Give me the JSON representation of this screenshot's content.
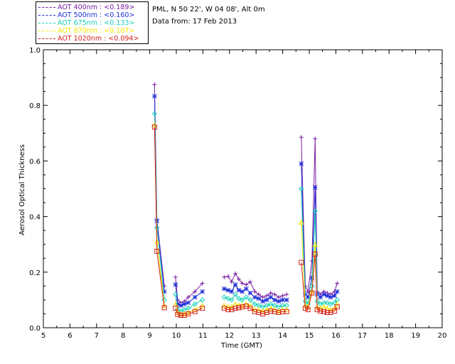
{
  "legend": {
    "items": [
      {
        "label": "AOT  400nm : <0.189>",
        "color": "#7b1fa2"
      },
      {
        "label": "AOT  500nm : <0.160>",
        "color": "#1f2fd6"
      },
      {
        "label": "AOT  675nm : <0.133>",
        "color": "#19d1b8"
      },
      {
        "label": "AOT  870nm : <0.107>",
        "color": "#f2e600"
      },
      {
        "label": "AOT 1020nm : <0.094>",
        "color": "#d42020"
      }
    ]
  },
  "info": {
    "location": "PML, N 50 22', W 04 08', Alt 0m",
    "date": "Data from: 17 Feb 2013"
  },
  "chart_data": {
    "type": "scatter",
    "xlabel": "Time (GMT)",
    "ylabel": "Aerosol Optical Thickness",
    "xlim": [
      5,
      20
    ],
    "ylim": [
      0.0,
      1.0
    ],
    "xticks": [
      "5",
      "6",
      "7",
      "8",
      "9",
      "10",
      "11",
      "12",
      "13",
      "14",
      "15",
      "16",
      "17",
      "18",
      "19",
      "20"
    ],
    "yticks": [
      "0.0",
      "0.2",
      "0.4",
      "0.6",
      "0.8",
      "1.0"
    ],
    "grid": false,
    "legend_position": "top-left, outside plot",
    "x": [
      9.18,
      9.27,
      9.55,
      9.97,
      10.05,
      10.17,
      10.3,
      10.45,
      10.7,
      10.98,
      11.8,
      11.95,
      12.08,
      12.22,
      12.35,
      12.48,
      12.63,
      12.78,
      12.95,
      13.1,
      13.25,
      13.4,
      13.55,
      13.7,
      13.85,
      14.0,
      14.15,
      14.7,
      14.85,
      14.95,
      15.1,
      15.22,
      15.3,
      15.42,
      15.55,
      15.68,
      15.8,
      15.95,
      16.05
    ],
    "series": [
      {
        "name": "AOT  400nm : <0.189>",
        "marker": "plus",
        "values": [
          0.875,
          0.39,
          0.15,
          0.182,
          0.1,
          0.09,
          0.095,
          0.11,
          0.13,
          0.16,
          0.182,
          0.185,
          0.165,
          0.195,
          0.175,
          0.16,
          0.155,
          0.165,
          0.13,
          0.12,
          0.11,
          0.115,
          0.125,
          0.12,
          0.11,
          0.115,
          0.12,
          0.685,
          0.15,
          0.13,
          0.24,
          0.68,
          0.13,
          0.12,
          0.13,
          0.125,
          0.12,
          0.13,
          0.16
        ]
      },
      {
        "name": "AOT  500nm : <0.160>",
        "marker": "asterisk",
        "values": [
          0.833,
          0.385,
          0.13,
          0.155,
          0.085,
          0.08,
          0.085,
          0.09,
          0.11,
          0.13,
          0.14,
          0.135,
          0.13,
          0.155,
          0.135,
          0.13,
          0.14,
          0.125,
          0.11,
          0.105,
          0.095,
          0.1,
          0.11,
          0.1,
          0.095,
          0.1,
          0.1,
          0.59,
          0.12,
          0.11,
          0.18,
          0.505,
          0.12,
          0.11,
          0.12,
          0.115,
          0.11,
          0.115,
          0.13
        ]
      },
      {
        "name": "AOT  675nm : <0.133>",
        "marker": "diamond",
        "values": [
          0.77,
          0.36,
          0.1,
          0.12,
          0.065,
          0.06,
          0.065,
          0.07,
          0.085,
          0.1,
          0.11,
          0.105,
          0.1,
          0.12,
          0.105,
          0.1,
          0.11,
          0.1,
          0.085,
          0.08,
          0.075,
          0.08,
          0.085,
          0.08,
          0.075,
          0.08,
          0.08,
          0.5,
          0.095,
          0.085,
          0.15,
          0.42,
          0.095,
          0.085,
          0.09,
          0.09,
          0.085,
          0.09,
          0.1
        ]
      },
      {
        "name": "AOT  870nm : <0.107>",
        "marker": "triangle",
        "values": [
          0.73,
          0.31,
          0.08,
          0.085,
          0.055,
          0.05,
          0.05,
          0.055,
          0.065,
          0.08,
          0.08,
          0.075,
          0.075,
          0.085,
          0.08,
          0.08,
          0.085,
          0.08,
          0.065,
          0.065,
          0.06,
          0.065,
          0.07,
          0.065,
          0.06,
          0.065,
          0.065,
          0.38,
          0.08,
          0.075,
          0.13,
          0.3,
          0.075,
          0.07,
          0.075,
          0.07,
          0.065,
          0.07,
          0.085
        ]
      },
      {
        "name": "AOT 1020nm : <0.094>",
        "marker": "square",
        "values": [
          0.722,
          0.275,
          0.072,
          0.07,
          0.048,
          0.045,
          0.045,
          0.05,
          0.058,
          0.07,
          0.07,
          0.065,
          0.065,
          0.07,
          0.072,
          0.075,
          0.078,
          0.07,
          0.058,
          0.055,
          0.05,
          0.055,
          0.06,
          0.058,
          0.055,
          0.058,
          0.058,
          0.235,
          0.07,
          0.065,
          0.125,
          0.265,
          0.065,
          0.06,
          0.058,
          0.055,
          0.055,
          0.06,
          0.075
        ]
      }
    ]
  }
}
